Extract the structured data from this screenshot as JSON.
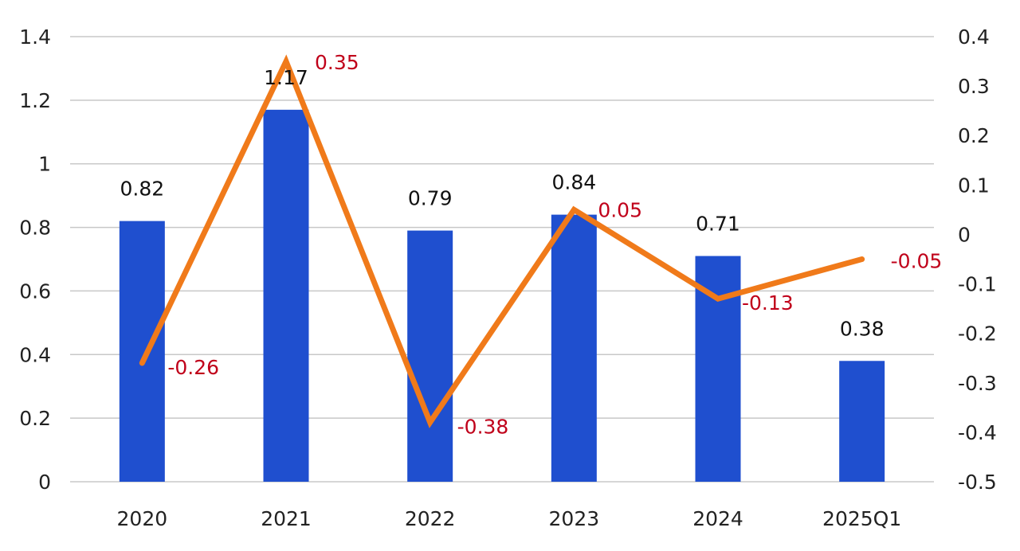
{
  "chart_data": {
    "type": "bar+line",
    "categories": [
      "2020",
      "2021",
      "2022",
      "2023",
      "2024",
      "2025Q1"
    ],
    "series": [
      {
        "name": "bar",
        "type": "bar",
        "axis": "left",
        "values": [
          0.82,
          1.17,
          0.79,
          0.84,
          0.71,
          0.38
        ],
        "labels": [
          "0.82",
          "1.17",
          "0.79",
          "0.84",
          "0.71",
          "0.38"
        ]
      },
      {
        "name": "line",
        "type": "line",
        "axis": "right",
        "values": [
          -0.26,
          0.35,
          -0.38,
          0.05,
          -0.13,
          -0.05
        ],
        "labels": [
          "-0.26",
          "0.35",
          "-0.38",
          "0.05",
          "-0.13",
          "-0.05"
        ]
      }
    ],
    "y_left": {
      "min": 0,
      "max": 1.4,
      "ticks": [
        "0",
        "0.2",
        "0.4",
        "0.6",
        "0.8",
        "1",
        "1.2",
        "1.4"
      ]
    },
    "y_right": {
      "min": -0.5,
      "max": 0.4,
      "ticks": [
        "-0.5",
        "-0.4",
        "-0.3",
        "-0.2",
        "-0.1",
        "0",
        "0.1",
        "0.2",
        "0.3",
        "0.4"
      ]
    },
    "grid": true,
    "legend": "none",
    "colors": {
      "bar": "#1f4fcf",
      "line": "#f07a1a",
      "line_label": "#c0001a",
      "grid": "#c8c8c8"
    }
  }
}
